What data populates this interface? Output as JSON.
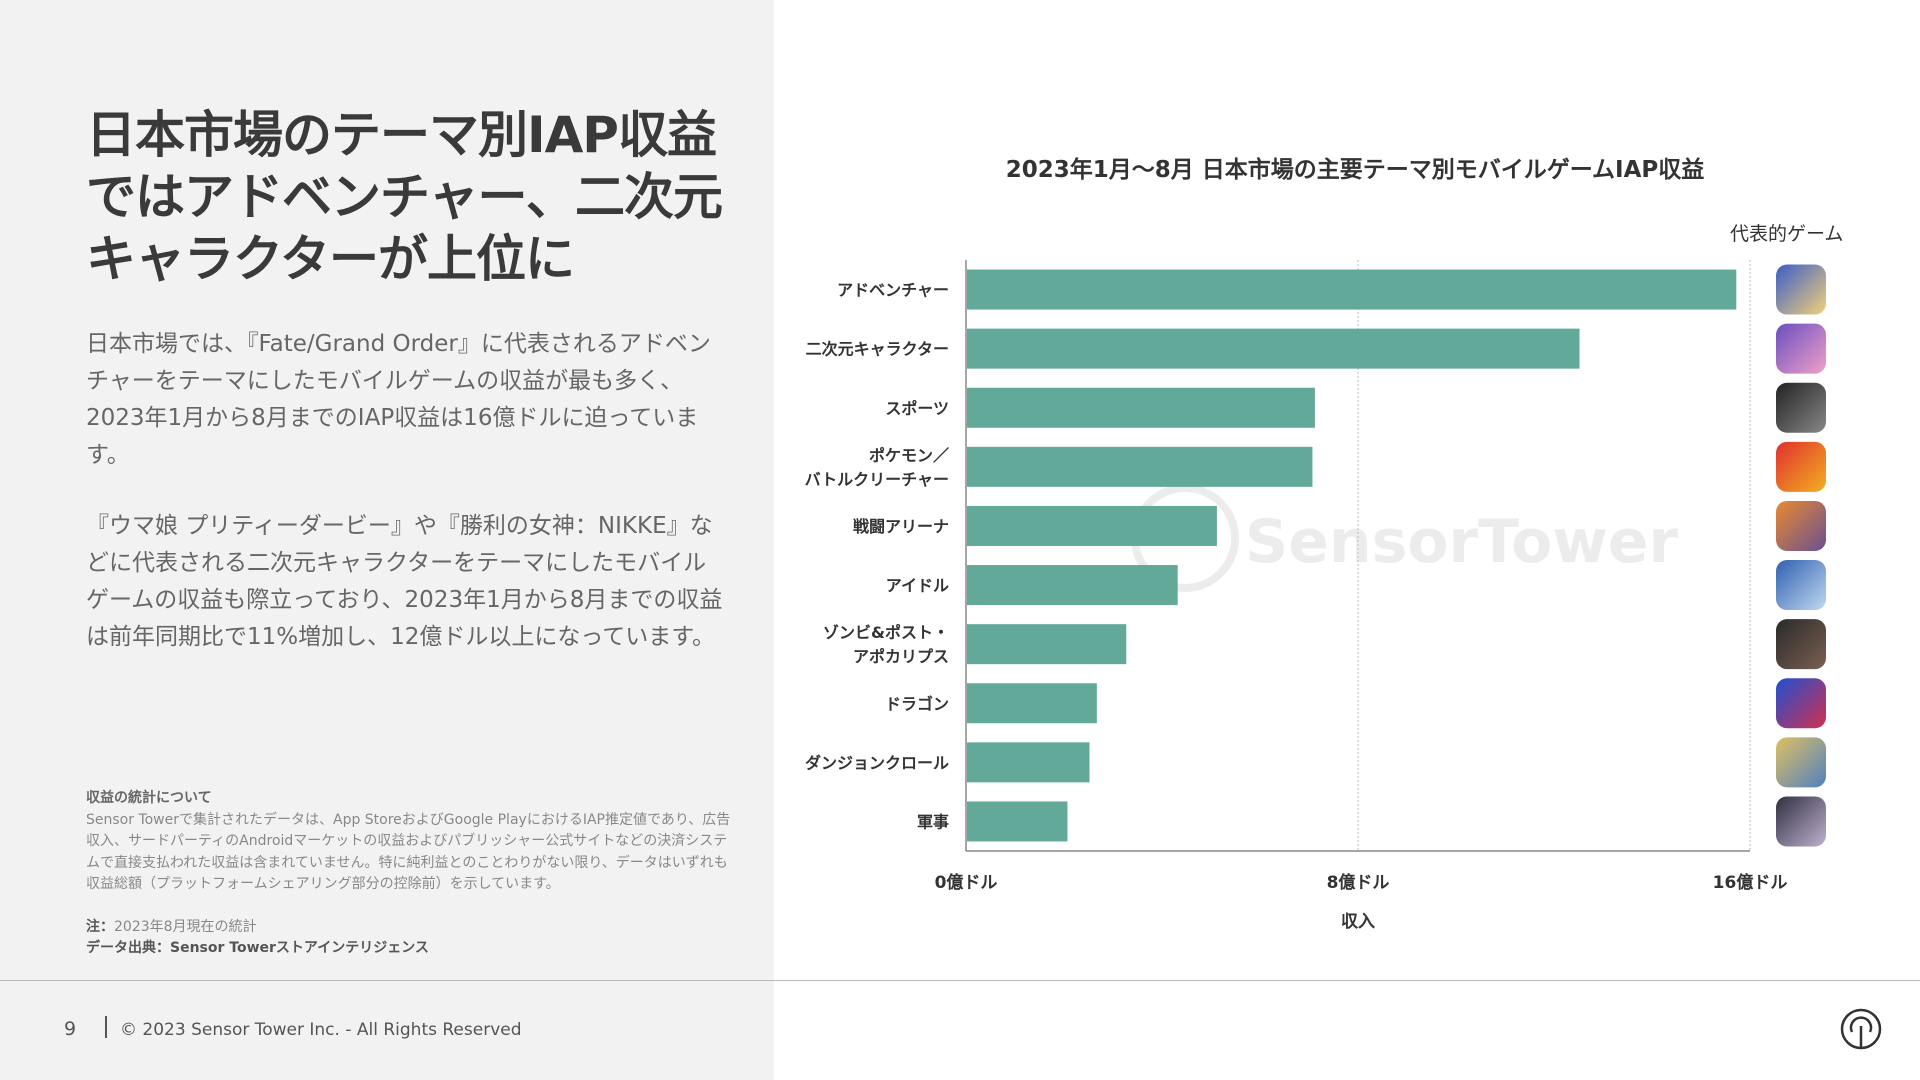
{
  "left": {
    "title": "日本市場のテーマ別IAP収益ではアドベンチャー、二次元キャラクターが上位に",
    "para1": "日本市場では、『Fate/Grand Order』に代表されるアドベンチャーをテーマにしたモバイルゲームの収益が最も多く、2023年1月から8月までのIAP収益は16億ドルに迫っています。",
    "para2": "『ウマ娘 プリティーダービー』や『勝利の女神：NIKKE』などに代表される二次元キャラクターをテーマにしたモバイルゲームの収益も際立っており、2023年1月から8月までの収益は前年同期比で11%増加し、12億ドル以上になっています。",
    "notes_heading": "収益の統計について",
    "notes_body": "Sensor Towerで集計されたデータは、App StoreおよびGoogle PlayにおけるIAP推定値であり、広告収入、サードパーティのAndroidマーケットの収益およびパブリッシャー公式サイトなどの決済システムで直接支払われた収益は含まれていません。特に純利益とのことわりがない限り、データはいずれも収益総額（プラットフォームシェアリング部分の控除前）を示しています。",
    "note_label": "注：",
    "note_text": "2023年8月現在の統計",
    "source": "データ出典：Sensor Towerストアインテリジェンス"
  },
  "footer": {
    "page": "9",
    "copyright": "© 2023 Sensor Tower Inc. - All Rights Reserved"
  },
  "chart_data": {
    "type": "bar",
    "orientation": "horizontal",
    "title": "2023年1月～8月 日本市場の主要テーマ別モバイルゲームIAP収益",
    "xlabel": "収入",
    "ylabel": "",
    "xlim": [
      0,
      16
    ],
    "unit": "億ドル",
    "x_ticks": [
      "0億ドル",
      "8億ドル",
      "16億ドル"
    ],
    "x_tick_values": [
      0,
      8,
      16
    ],
    "categories": [
      "アドベンチャー",
      "二次元キャラクター",
      "スポーツ",
      "ポケモン／\nバトルクリーチャー",
      "戦闘アリーナ",
      "アイドル",
      "ゾンビ&ポスト・\nアポカリプス",
      "ドラゴン",
      "ダンジョンクロール",
      "軍事"
    ],
    "values": [
      15.7,
      12.5,
      7.1,
      7.05,
      5.1,
      4.3,
      3.25,
      2.65,
      2.5,
      2.05
    ],
    "bar_color": "#62a99a",
    "rep_games_label": "代表的ゲーム",
    "icon_colors": [
      [
        "#3a5cc8",
        "#f2d27a"
      ],
      [
        "#6a4fc0",
        "#f0a0c8"
      ],
      [
        "#222",
        "#888"
      ],
      [
        "#e03030",
        "#f2b020"
      ],
      [
        "#e88a30",
        "#6a5090"
      ],
      [
        "#3060b0",
        "#c0d8f0"
      ],
      [
        "#2a2a2a",
        "#7a6050"
      ],
      [
        "#2050d0",
        "#d03050"
      ],
      [
        "#e0c060",
        "#5080c0"
      ],
      [
        "#303040",
        "#c0b0d0"
      ]
    ],
    "watermark": "SensorTower"
  }
}
